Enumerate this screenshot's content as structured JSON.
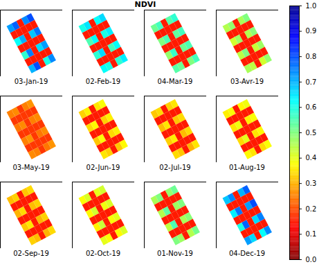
{
  "chart_data": {
    "type": "heatmap",
    "title": "NDVI",
    "panels": [
      {
        "label": "03-Jan-19",
        "cells": [
          [
            0.72,
            0.78,
            0.15,
            0.74,
            0.8
          ],
          [
            0.15,
            0.15,
            0.15,
            0.15,
            0.15
          ],
          [
            0.62,
            0.7,
            0.15,
            0.68,
            0.76
          ],
          [
            0.15,
            0.15,
            0.15,
            0.15,
            0.15
          ],
          [
            0.58,
            0.75,
            0.15,
            0.66,
            0.72
          ],
          [
            0.15,
            0.15,
            0.15,
            0.15,
            0.15
          ],
          [
            0.7,
            0.8,
            0.15,
            0.6,
            0.74
          ]
        ]
      },
      {
        "label": "02-Feb-19",
        "cells": [
          [
            0.6,
            0.65,
            0.15,
            0.62,
            0.66
          ],
          [
            0.15,
            0.15,
            0.15,
            0.15,
            0.15
          ],
          [
            0.55,
            0.62,
            0.15,
            0.6,
            0.64
          ],
          [
            0.15,
            0.15,
            0.15,
            0.15,
            0.15
          ],
          [
            0.58,
            0.66,
            0.15,
            0.56,
            0.62
          ],
          [
            0.15,
            0.15,
            0.15,
            0.15,
            0.15
          ],
          [
            0.62,
            0.6,
            0.15,
            0.58,
            0.64
          ]
        ]
      },
      {
        "label": "04-Mar-19",
        "cells": [
          [
            0.52,
            0.56,
            0.15,
            0.54,
            0.58
          ],
          [
            0.15,
            0.15,
            0.15,
            0.15,
            0.15
          ],
          [
            0.5,
            0.55,
            0.15,
            0.53,
            0.56
          ],
          [
            0.15,
            0.15,
            0.15,
            0.15,
            0.15
          ],
          [
            0.48,
            0.57,
            0.15,
            0.52,
            0.55
          ],
          [
            0.15,
            0.15,
            0.15,
            0.15,
            0.15
          ],
          [
            0.54,
            0.52,
            0.15,
            0.5,
            0.56
          ]
        ]
      },
      {
        "label": "03-Avr-19",
        "cells": [
          [
            0.45,
            0.48,
            0.15,
            0.46,
            0.5
          ],
          [
            0.15,
            0.15,
            0.15,
            0.15,
            0.15
          ],
          [
            0.42,
            0.47,
            0.15,
            0.45,
            0.49
          ],
          [
            0.15,
            0.15,
            0.15,
            0.15,
            0.15
          ],
          [
            0.44,
            0.5,
            0.15,
            0.43,
            0.47
          ],
          [
            0.15,
            0.15,
            0.15,
            0.15,
            0.15
          ],
          [
            0.46,
            0.44,
            0.15,
            0.42,
            0.48
          ]
        ]
      },
      {
        "label": "03-May-19",
        "cells": [
          [
            0.25,
            0.26,
            0.18,
            0.25,
            0.27
          ],
          [
            0.18,
            0.18,
            0.18,
            0.18,
            0.18
          ],
          [
            0.24,
            0.26,
            0.18,
            0.25,
            0.26
          ],
          [
            0.18,
            0.18,
            0.18,
            0.18,
            0.18
          ],
          [
            0.25,
            0.27,
            0.18,
            0.24,
            0.26
          ],
          [
            0.18,
            0.18,
            0.18,
            0.18,
            0.18
          ],
          [
            0.26,
            0.25,
            0.18,
            0.24,
            0.27
          ]
        ]
      },
      {
        "label": "02-Jun-19",
        "cells": [
          [
            0.33,
            0.36,
            0.15,
            0.35,
            0.38
          ],
          [
            0.15,
            0.15,
            0.15,
            0.15,
            0.15
          ],
          [
            0.34,
            0.37,
            0.15,
            0.33,
            0.36
          ],
          [
            0.15,
            0.15,
            0.15,
            0.15,
            0.15
          ],
          [
            0.32,
            0.38,
            0.15,
            0.34,
            0.36
          ],
          [
            0.15,
            0.15,
            0.15,
            0.15,
            0.15
          ],
          [
            0.35,
            0.33,
            0.15,
            0.32,
            0.37
          ]
        ]
      },
      {
        "label": "02-Jul-19",
        "cells": [
          [
            0.32,
            0.34,
            0.15,
            0.33,
            0.35
          ],
          [
            0.15,
            0.15,
            0.15,
            0.15,
            0.15
          ],
          [
            0.31,
            0.35,
            0.15,
            0.32,
            0.34
          ],
          [
            0.15,
            0.15,
            0.15,
            0.15,
            0.15
          ],
          [
            0.33,
            0.36,
            0.15,
            0.31,
            0.34
          ],
          [
            0.15,
            0.15,
            0.15,
            0.15,
            0.15
          ],
          [
            0.34,
            0.32,
            0.15,
            0.3,
            0.35
          ]
        ]
      },
      {
        "label": "01-Aug-19",
        "cells": [
          [
            0.36,
            0.38,
            0.15,
            0.37,
            0.39
          ],
          [
            0.15,
            0.15,
            0.15,
            0.15,
            0.15
          ],
          [
            0.35,
            0.39,
            0.15,
            0.36,
            0.38
          ],
          [
            0.15,
            0.15,
            0.15,
            0.15,
            0.15
          ],
          [
            0.34,
            0.4,
            0.15,
            0.35,
            0.37
          ],
          [
            0.15,
            0.15,
            0.15,
            0.15,
            0.15
          ],
          [
            0.37,
            0.35,
            0.15,
            0.34,
            0.38
          ]
        ]
      },
      {
        "label": "02-Sep-19",
        "cells": [
          [
            0.31,
            0.33,
            0.15,
            0.32,
            0.34
          ],
          [
            0.15,
            0.15,
            0.15,
            0.15,
            0.15
          ],
          [
            0.3,
            0.34,
            0.15,
            0.31,
            0.33
          ],
          [
            0.15,
            0.15,
            0.15,
            0.15,
            0.15
          ],
          [
            0.32,
            0.35,
            0.15,
            0.3,
            0.33
          ],
          [
            0.15,
            0.15,
            0.15,
            0.15,
            0.15
          ],
          [
            0.33,
            0.31,
            0.15,
            0.3,
            0.34
          ]
        ]
      },
      {
        "label": "02-Oct-19",
        "cells": [
          [
            0.38,
            0.41,
            0.15,
            0.4,
            0.42
          ],
          [
            0.15,
            0.15,
            0.15,
            0.15,
            0.15
          ],
          [
            0.37,
            0.42,
            0.15,
            0.39,
            0.41
          ],
          [
            0.15,
            0.15,
            0.15,
            0.15,
            0.15
          ],
          [
            0.36,
            0.43,
            0.15,
            0.38,
            0.4
          ],
          [
            0.15,
            0.15,
            0.15,
            0.15,
            0.15
          ],
          [
            0.4,
            0.38,
            0.15,
            0.37,
            0.41
          ]
        ]
      },
      {
        "label": "01-Nov-19",
        "cells": [
          [
            0.46,
            0.5,
            0.15,
            0.48,
            0.52
          ],
          [
            0.15,
            0.15,
            0.15,
            0.15,
            0.15
          ],
          [
            0.45,
            0.53,
            0.15,
            0.47,
            0.5
          ],
          [
            0.15,
            0.15,
            0.15,
            0.15,
            0.15
          ],
          [
            0.44,
            0.55,
            0.15,
            0.46,
            0.49
          ],
          [
            0.15,
            0.15,
            0.15,
            0.15,
            0.15
          ],
          [
            0.5,
            0.47,
            0.15,
            0.45,
            0.51
          ]
        ]
      },
      {
        "label": "04-Dec-19",
        "cells": [
          [
            0.68,
            0.74,
            0.15,
            0.7,
            0.78
          ],
          [
            0.15,
            0.15,
            0.15,
            0.15,
            0.15
          ],
          [
            0.64,
            0.76,
            0.15,
            0.72,
            0.8
          ],
          [
            0.15,
            0.15,
            0.15,
            0.15,
            0.15
          ],
          [
            0.6,
            0.78,
            0.15,
            0.66,
            0.75
          ],
          [
            0.15,
            0.15,
            0.15,
            0.15,
            0.15
          ],
          [
            0.72,
            0.66,
            0.15,
            0.62,
            0.74
          ]
        ]
      }
    ],
    "colorbar": {
      "range": [
        0,
        1
      ],
      "ticks": [
        0,
        0.1,
        0.2,
        0.3,
        0.4,
        0.5,
        0.6,
        0.7,
        0.8,
        0.9,
        1
      ]
    }
  }
}
